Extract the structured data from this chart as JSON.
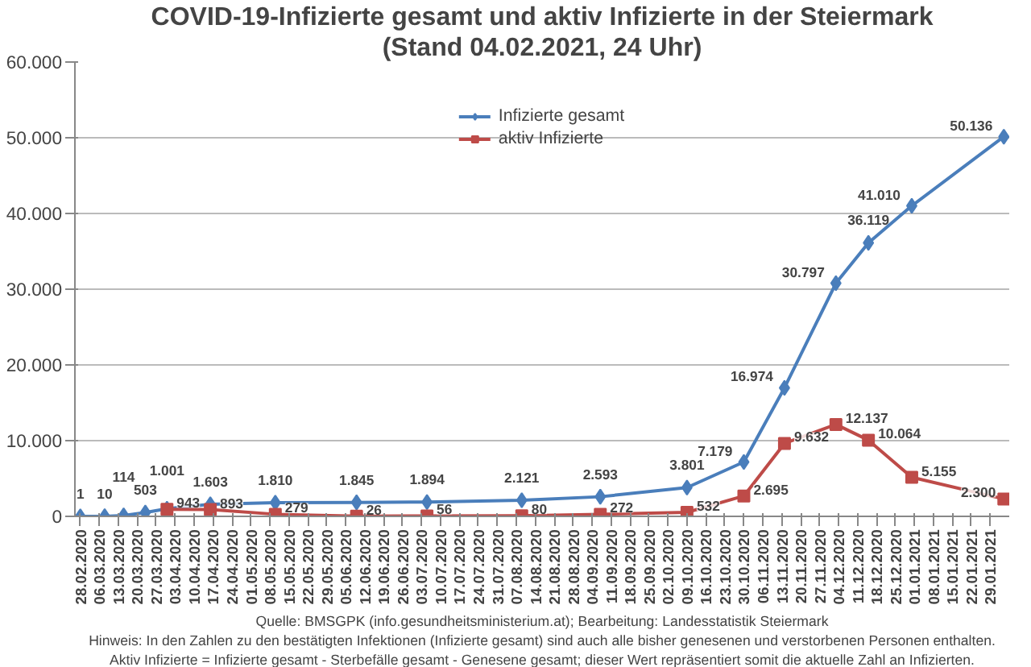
{
  "chart_data": {
    "type": "line",
    "title": "COVID-19-Infizierte gesamt und aktiv Infizierte in der Steiermark",
    "subtitle": "(Stand 04.02.2021, 24 Uhr)",
    "x": [
      "2020-02-28",
      "2020-03-08",
      "2020-03-15",
      "2020-03-23",
      "2020-03-31",
      "2020-04-16",
      "2020-05-10",
      "2020-06-09",
      "2020-07-05",
      "2020-08-09",
      "2020-09-07",
      "2020-10-09",
      "2020-10-30",
      "2020-11-14",
      "2020-12-03",
      "2020-12-15",
      "2020-12-31",
      "2021-02-03"
    ],
    "series": [
      {
        "name": "Infizierte gesamt",
        "color": "#4a7ebb",
        "marker": "diamond",
        "values": [
          1,
          10,
          114,
          503,
          1001,
          1603,
          1810,
          1845,
          1894,
          2121,
          2593,
          3801,
          7179,
          16974,
          30797,
          36119,
          41010,
          50136
        ],
        "value_labels": [
          "1",
          "10",
          "114",
          "503",
          "1.001",
          "1.603",
          "1.810",
          "1.845",
          "1.894",
          "2.121",
          "2.593",
          "3.801",
          "7.179",
          "16.974",
          "30.797",
          "36.119",
          "41.010",
          "50.136"
        ]
      },
      {
        "name": "aktiv Infizierte",
        "color": "#be4b48",
        "marker": "square",
        "values": [
          null,
          null,
          null,
          null,
          943,
          893,
          279,
          26,
          56,
          80,
          272,
          532,
          2695,
          9632,
          12137,
          10064,
          5155,
          2300
        ],
        "value_labels": [
          null,
          null,
          null,
          null,
          "943",
          "893",
          "279",
          "26",
          "56",
          "80",
          "272",
          "532",
          "2.695",
          "9.632",
          "12.137",
          "10.064",
          "5.155",
          "2.300"
        ]
      }
    ],
    "xlim": [
      "2020-02-26",
      "2021-02-05"
    ],
    "xticks": [
      {
        "value": "2020-02-28",
        "label": "28.02.2020"
      },
      {
        "value": "2020-03-06",
        "label": "06.03.2020"
      },
      {
        "value": "2020-03-13",
        "label": "13.03.2020"
      },
      {
        "value": "2020-03-20",
        "label": "20.03.2020"
      },
      {
        "value": "2020-03-27",
        "label": "27.03.2020"
      },
      {
        "value": "2020-04-03",
        "label": "03.04.2020"
      },
      {
        "value": "2020-04-10",
        "label": "10.04.2020"
      },
      {
        "value": "2020-04-17",
        "label": "17.04.2020"
      },
      {
        "value": "2020-04-24",
        "label": "24.04.2020"
      },
      {
        "value": "2020-05-01",
        "label": "01.05.2020"
      },
      {
        "value": "2020-05-08",
        "label": "08.05.2020"
      },
      {
        "value": "2020-05-15",
        "label": "15.05.2020"
      },
      {
        "value": "2020-05-22",
        "label": "22.05.2020"
      },
      {
        "value": "2020-05-29",
        "label": "29.05.2020"
      },
      {
        "value": "2020-06-05",
        "label": "05.06.2020"
      },
      {
        "value": "2020-06-12",
        "label": "12.06.2020"
      },
      {
        "value": "2020-06-19",
        "label": "19.06.2020"
      },
      {
        "value": "2020-06-26",
        "label": "26.06.2020"
      },
      {
        "value": "2020-07-03",
        "label": "03.07.2020"
      },
      {
        "value": "2020-07-10",
        "label": "10.07.2020"
      },
      {
        "value": "2020-07-17",
        "label": "17.07.2020"
      },
      {
        "value": "2020-07-24",
        "label": "24.07.2020"
      },
      {
        "value": "2020-07-31",
        "label": "31.07.2020"
      },
      {
        "value": "2020-08-07",
        "label": "07.08.2020"
      },
      {
        "value": "2020-08-14",
        "label": "14.08.2020"
      },
      {
        "value": "2020-08-21",
        "label": "21.08.2020"
      },
      {
        "value": "2020-08-28",
        "label": "28.08.2020"
      },
      {
        "value": "2020-09-04",
        "label": "04.09.2020"
      },
      {
        "value": "2020-09-11",
        "label": "11.09.2020"
      },
      {
        "value": "2020-09-18",
        "label": "18.09.2020"
      },
      {
        "value": "2020-09-25",
        "label": "25.09.2020"
      },
      {
        "value": "2020-10-02",
        "label": "02.10.2020"
      },
      {
        "value": "2020-10-09",
        "label": "09.10.2020"
      },
      {
        "value": "2020-10-16",
        "label": "16.10.2020"
      },
      {
        "value": "2020-10-23",
        "label": "23.10.2020"
      },
      {
        "value": "2020-10-30",
        "label": "30.10.2020"
      },
      {
        "value": "2020-11-06",
        "label": "06.11.2020"
      },
      {
        "value": "2020-11-13",
        "label": "13.11.2020"
      },
      {
        "value": "2020-11-20",
        "label": "20.11.2020"
      },
      {
        "value": "2020-11-27",
        "label": "27.11.2020"
      },
      {
        "value": "2020-12-04",
        "label": "04.12.2020"
      },
      {
        "value": "2020-12-11",
        "label": "11.12.2020"
      },
      {
        "value": "2020-12-18",
        "label": "18.12.2020"
      },
      {
        "value": "2020-12-25",
        "label": "25.12.2020"
      },
      {
        "value": "2021-01-01",
        "label": "01.01.2021"
      },
      {
        "value": "2021-01-08",
        "label": "08.01.2021"
      },
      {
        "value": "2021-01-15",
        "label": "15.01.2021"
      },
      {
        "value": "2021-01-22",
        "label": "22.01.2021"
      },
      {
        "value": "2021-01-29",
        "label": "29.01.2021"
      }
    ],
    "ylim": [
      0,
      60000
    ],
    "yticks": [
      0,
      {
        "value": 10000,
        "label": "10.000"
      },
      {
        "value": 20000,
        "label": "20.000"
      },
      {
        "value": 30000,
        "label": "30.000"
      },
      {
        "value": 40000,
        "label": "40.000"
      },
      {
        "value": 50000,
        "label": "50.000"
      },
      {
        "value": 60000,
        "label": "60.000"
      }
    ],
    "grid": "y",
    "legend": "top",
    "line_style": "solid",
    "annotations": [
      "Quelle: BMSGPK (info.gesundheitsministerium.at); Bearbeitung: Landesstatistik Steiermark",
      "Hinweis: In den Zahlen zu den bestätigten Infektionen (Infizierte gesamt) sind auch alle bisher genesenen und verstorbenen Personen enthalten.",
      "Aktiv Infizierte = Infizierte gesamt - Sterbefälle gesamt - Genesene gesamt; dieser Wert repräsentiert somit die aktuelle Zahl an Infizierten."
    ]
  }
}
